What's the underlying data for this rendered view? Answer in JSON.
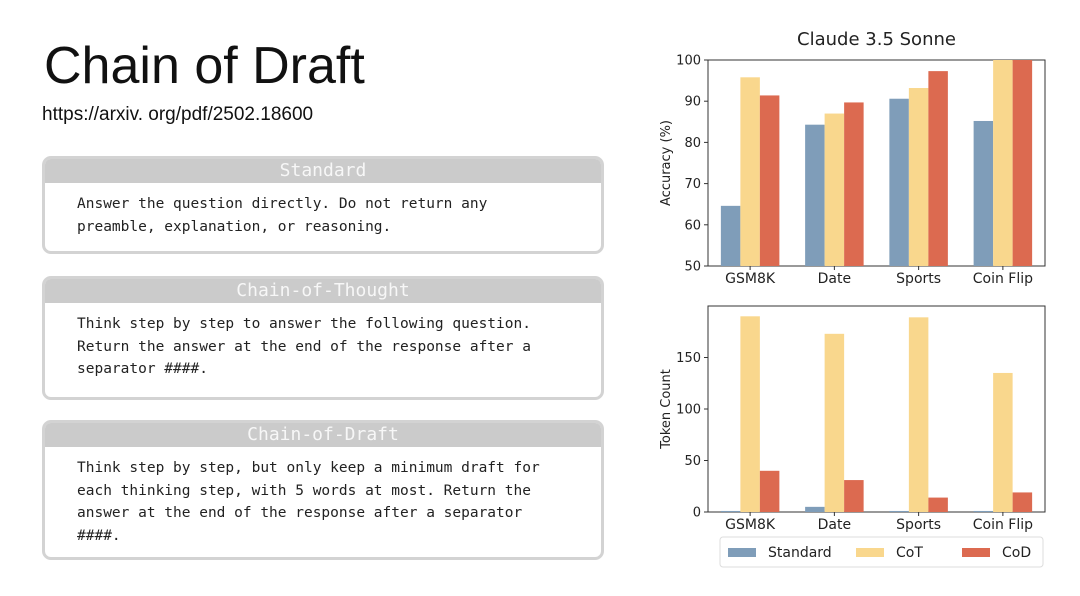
{
  "slide": {
    "title": "Chain of Draft",
    "subtitle": "https://arxiv. org/pdf/2502.18600"
  },
  "prompts": [
    {
      "name": "Standard",
      "text": "Answer the question directly.  Do not return any\npreamble, explanation, or reasoning."
    },
    {
      "name": "Chain-of-Thought",
      "text": "Think step by step to answer the following question.\nReturn the answer at the end of the response after a\nseparator ####."
    },
    {
      "name": "Chain-of-Draft",
      "text": "Think step by step, but only keep a minimum draft for\neach thinking step, with 5 words at most. Return the\nanswer at the end of the response after a separator\n####."
    }
  ],
  "colors": {
    "Standard": "#7f9db9",
    "CoT": "#f9d78d",
    "CoD": "#dc6a50"
  },
  "legend": {
    "position": "bottom",
    "items": [
      "Standard",
      "CoT",
      "CoD"
    ]
  },
  "chart_data": [
    {
      "type": "bar",
      "title": "Claude 3.5 Sonne",
      "xlabel": "",
      "ylabel": "Accuracy (%)",
      "categories": [
        "GSM8K",
        "Date",
        "Sports",
        "Coin Flip"
      ],
      "series": [
        {
          "name": "Standard",
          "values": [
            64.6,
            84.3,
            90.6,
            85.2
          ]
        },
        {
          "name": "CoT",
          "values": [
            95.8,
            87.0,
            93.2,
            100.0
          ]
        },
        {
          "name": "CoD",
          "values": [
            91.4,
            89.7,
            97.3,
            100.0
          ]
        }
      ],
      "ylim": [
        50,
        100
      ],
      "yticks": [
        50,
        60,
        70,
        80,
        90,
        100
      ],
      "grid": false
    },
    {
      "type": "bar",
      "title": "",
      "xlabel": "",
      "ylabel": "Token Count",
      "categories": [
        "GSM8K",
        "Date",
        "Sports",
        "Coin Flip"
      ],
      "series": [
        {
          "name": "Standard",
          "values": [
            1,
            5,
            1,
            1
          ]
        },
        {
          "name": "CoT",
          "values": [
            190,
            173,
            189,
            135
          ]
        },
        {
          "name": "CoD",
          "values": [
            40,
            31,
            14,
            19
          ]
        }
      ],
      "ylim": [
        0,
        200
      ],
      "yticks": [
        0,
        50,
        100,
        150
      ],
      "grid": false
    }
  ]
}
